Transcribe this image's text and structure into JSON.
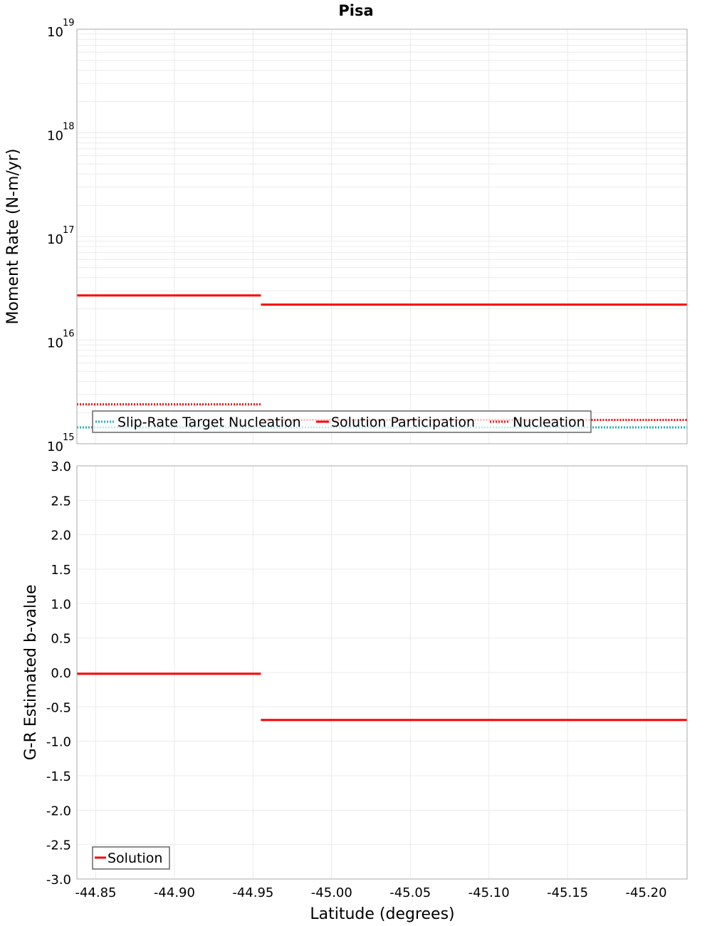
{
  "chart_data": [
    {
      "type": "line",
      "title": "Pisa",
      "xlabel": "Latitude (degrees)",
      "ylabel": "Moment Rate (N-m/yr)",
      "yscale": "log",
      "ylim": [
        1000000000000000.0,
        1e+19
      ],
      "xlim": [
        -44.838,
        -45.226
      ],
      "ytick_labels": [
        {
          "base": "10",
          "exp": "15",
          "value": 1000000000000000.0
        },
        {
          "base": "10",
          "exp": "16",
          "value": 1e+16
        },
        {
          "base": "10",
          "exp": "17",
          "value": 1e+17
        },
        {
          "base": "10",
          "exp": "18",
          "value": 1e+18
        },
        {
          "base": "10",
          "exp": "19",
          "value": 1e+19
        }
      ],
      "grid": true,
      "legend_position": "lower-left",
      "series": [
        {
          "name": "Slip-Rate Target Nucleation",
          "style": "dotted",
          "color": "#1fb0b8",
          "segments": [
            {
              "x": [
                -44.838,
                -45.226
              ],
              "y": 1440000000000000.0
            }
          ]
        },
        {
          "name": "Solution Participation",
          "style": "solid",
          "color": "#ff0000",
          "segments": [
            {
              "x": [
                -44.838,
                -44.955
              ],
              "y": 2.7e+16
            },
            {
              "x": [
                -44.955,
                -45.226
              ],
              "y": 2.2e+16
            }
          ]
        },
        {
          "name": "Nucleation",
          "style": "dotted",
          "color": "#ff0000",
          "segments": [
            {
              "x": [
                -44.838,
                -44.955
              ],
              "y": 2400000000000000.0
            },
            {
              "x": [
                -44.955,
                -45.226
              ],
              "y": 1700000000000000.0
            }
          ]
        }
      ]
    },
    {
      "type": "line",
      "title": "",
      "xlabel": "Latitude (degrees)",
      "ylabel": "G-R Estimated b-value",
      "ylim": [
        -3.0,
        3.0
      ],
      "xlim": [
        -44.838,
        -45.226
      ],
      "ytick_labels": [
        "3.0",
        "2.5",
        "2.0",
        "1.5",
        "1.0",
        "0.5",
        "0.0",
        "-0.5",
        "-1.0",
        "-1.5",
        "-2.0",
        "-2.5",
        "-3.0"
      ],
      "xtick_labels": [
        "-44.85",
        "-44.90",
        "-44.95",
        "-45.00",
        "-45.05",
        "-45.10",
        "-45.15",
        "-45.20"
      ],
      "grid": true,
      "legend_position": "lower-left",
      "series": [
        {
          "name": "Solution",
          "style": "solid",
          "color": "#ff0000",
          "segments": [
            {
              "x": [
                -44.838,
                -44.955
              ],
              "y": -0.02
            },
            {
              "x": [
                -44.955,
                -45.226
              ],
              "y": -0.69
            }
          ]
        }
      ]
    }
  ],
  "figure": {
    "title": "Pisa",
    "top": {
      "ylabel": "Moment Rate (N-m/yr)",
      "legend": [
        "Slip-Rate Target Nucleation",
        "Solution Participation",
        "Nucleation"
      ]
    },
    "bottom": {
      "ylabel": "G-R Estimated b-value",
      "xlabel": "Latitude (degrees)",
      "legend": [
        "Solution"
      ]
    },
    "colors": {
      "red": "#ff0000",
      "teal": "#1fb0b8",
      "grid": "#ebebeb",
      "frame": "#aaaaaa"
    }
  }
}
